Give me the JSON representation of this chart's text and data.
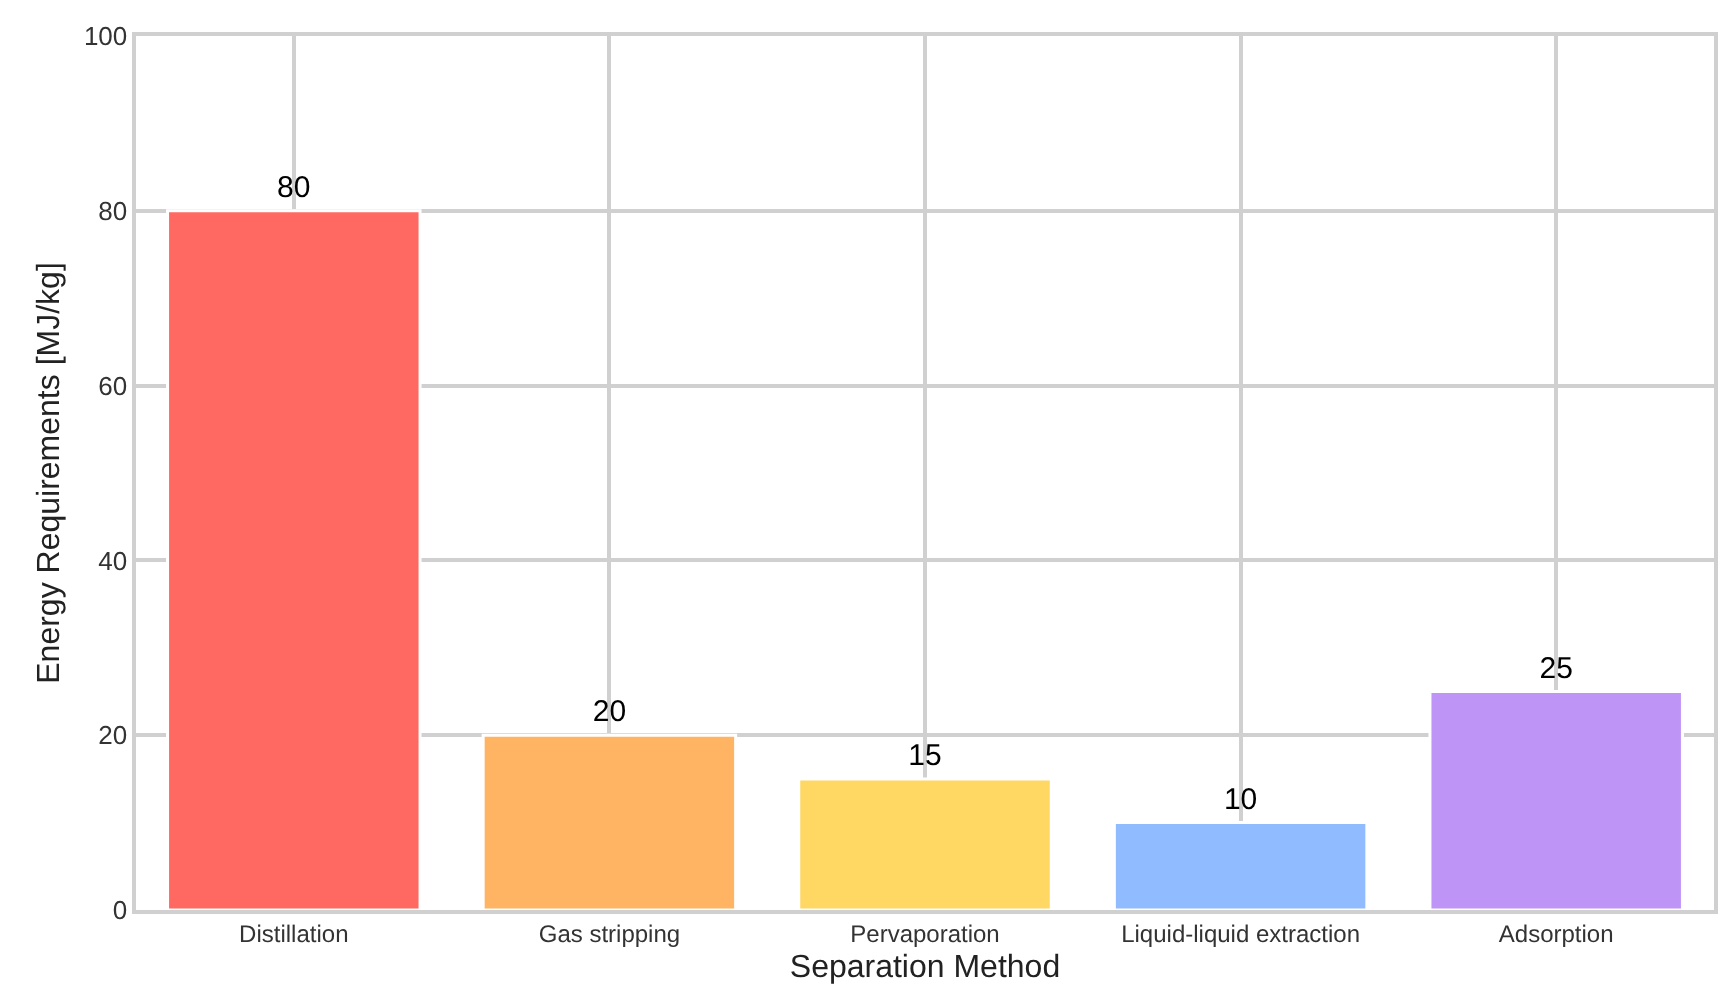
{
  "chart_data": {
    "type": "bar",
    "xlabel": "Separation Method",
    "ylabel": "Energy Requirements [MJ/kg]",
    "categories": [
      "Distillation",
      "Gas stripping",
      "Pervaporation",
      "Liquid-liquid extraction",
      "Adsorption"
    ],
    "values": [
      80,
      20,
      15,
      10,
      25
    ],
    "colors": [
      "#ff6961",
      "#ffb463",
      "#ffd763",
      "#91bbff",
      "#bf94f7"
    ],
    "ylim": [
      0,
      100
    ],
    "yticks": [
      0,
      20,
      40,
      60,
      80,
      100
    ],
    "grid": true,
    "data_labels": true
  }
}
